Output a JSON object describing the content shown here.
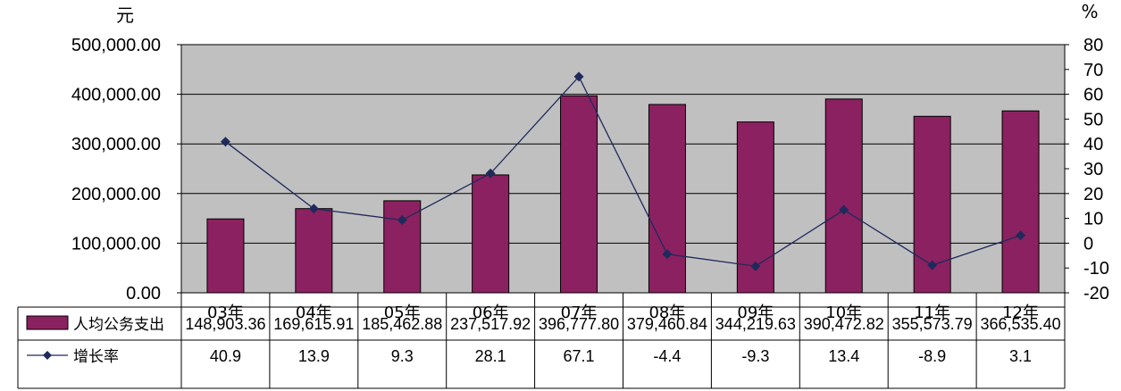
{
  "chart_data": {
    "type": "bar",
    "left_unit": "元",
    "right_unit": "%",
    "categories": [
      "03年",
      "04年",
      "05年",
      "06年",
      "07年",
      "08年",
      "09年",
      "10年",
      "11年",
      "12年"
    ],
    "series": [
      {
        "name": "人均公务支出",
        "type": "bar",
        "axis": "left",
        "color": "#8b2160",
        "values": [
          148903.36,
          169615.91,
          185462.88,
          237517.92,
          396777.8,
          379460.84,
          344219.63,
          390472.82,
          355573.79,
          366535.4
        ],
        "labels": [
          "148,903.36",
          "169,615.91",
          "185,462.88",
          "237,517.92",
          "396,777.80",
          "379,460.84",
          "344,219.63",
          "390,472.82",
          "355,573.79",
          "366,535.40"
        ]
      },
      {
        "name": "增长率",
        "type": "line",
        "axis": "right",
        "color": "#1f2a5c",
        "values": [
          40.9,
          13.9,
          9.3,
          28.1,
          67.1,
          -4.4,
          -9.3,
          13.4,
          -8.9,
          3.1
        ],
        "labels": [
          "40.9",
          "13.9",
          "9.3",
          "28.1",
          "67.1",
          "-4.4",
          "-9.3",
          "13.4",
          "-8.9",
          "3.1"
        ]
      }
    ],
    "y_left": {
      "min": 0,
      "max": 500000,
      "ticks": [
        0,
        100000,
        200000,
        300000,
        400000,
        500000
      ],
      "tick_labels": [
        "0.00",
        "100,000.00",
        "200,000.00",
        "300,000.00",
        "400,000.00",
        "500,000.00"
      ]
    },
    "y_right": {
      "min": -20,
      "max": 80,
      "ticks": [
        -20,
        -10,
        0,
        10,
        20,
        30,
        40,
        50,
        60,
        70,
        80
      ],
      "tick_labels": [
        "-20",
        "-10",
        "0",
        "10",
        "20",
        "30",
        "40",
        "50",
        "60",
        "70",
        "80"
      ]
    },
    "plot_background": "#c0c0c0",
    "grid": true,
    "data_table": true
  }
}
